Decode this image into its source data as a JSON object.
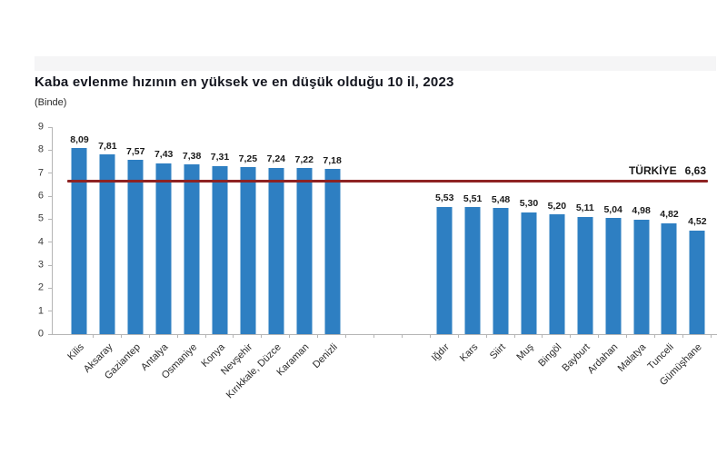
{
  "page": {
    "background": "#ffffff"
  },
  "chart_data": {
    "type": "bar",
    "title": "Kaba evlenme hızının en yüksek ve en düşük olduğu 10 il, 2023",
    "unit_label": "(Binde)",
    "xlabel": "",
    "ylabel": "",
    "ylim": [
      0,
      9
    ],
    "yticks": [
      0,
      1,
      2,
      3,
      4,
      5,
      6,
      7,
      8,
      9
    ],
    "grid": false,
    "legend": "none",
    "bar_color": "#2e7fc2",
    "axis_color": "#b5b5b5",
    "gap_slots": 3,
    "groups": [
      {
        "name": "en yüksek 10 il",
        "categories": [
          "Kilis",
          "Aksaray",
          "Gaziantep",
          "Antalya",
          "Osmaniye",
          "Konya",
          "Nevşehir",
          "Kırıkkale, Düzce",
          "Karaman",
          "Denizli"
        ],
        "values": [
          8.09,
          7.81,
          7.57,
          7.43,
          7.38,
          7.31,
          7.25,
          7.24,
          7.22,
          7.18
        ],
        "value_labels": [
          "8,09",
          "7,81",
          "7,57",
          "7,43",
          "7,38",
          "7,31",
          "7,25",
          "7,24",
          "7,22",
          "7,18"
        ]
      },
      {
        "name": "en düşük 10 il",
        "categories": [
          "Iğdır",
          "Kars",
          "Siirt",
          "Muş",
          "Bingöl",
          "Bayburt",
          "Ardahan",
          "Malatya",
          "Tunceli",
          "Gümüşhane"
        ],
        "values": [
          5.53,
          5.51,
          5.48,
          5.3,
          5.2,
          5.11,
          5.04,
          4.98,
          4.82,
          4.52
        ],
        "value_labels": [
          "5,53",
          "5,51",
          "5,48",
          "5,30",
          "5,20",
          "5,11",
          "5,04",
          "4,98",
          "4,82",
          "4,52"
        ]
      }
    ],
    "reference_line": {
      "label": "TÜRKİYE",
      "value": 6.63,
      "value_label": "6,63",
      "color": "#8e2323"
    }
  }
}
